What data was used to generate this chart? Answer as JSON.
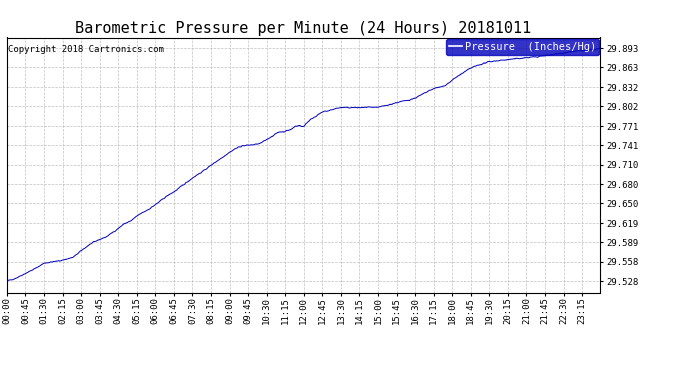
{
  "title": "Barometric Pressure per Minute (24 Hours) 20181011",
  "copyright": "Copyright 2018 Cartronics.com",
  "legend_label": "Pressure  (Inches/Hg)",
  "line_color": "#0000bb",
  "background_color": "#ffffff",
  "plot_bg_color": "#ffffff",
  "grid_color": "#c0c0c0",
  "yticks": [
    29.528,
    29.558,
    29.589,
    29.619,
    29.65,
    29.68,
    29.71,
    29.741,
    29.771,
    29.802,
    29.832,
    29.863,
    29.893
  ],
  "ylim": [
    29.51,
    29.91
  ],
  "xtick_labels": [
    "00:00",
    "00:45",
    "01:30",
    "02:15",
    "03:00",
    "03:45",
    "04:30",
    "05:15",
    "06:00",
    "06:45",
    "07:30",
    "08:15",
    "09:00",
    "09:45",
    "10:30",
    "11:15",
    "12:00",
    "12:45",
    "13:30",
    "14:15",
    "15:00",
    "15:45",
    "16:30",
    "17:15",
    "18:00",
    "18:45",
    "19:30",
    "20:15",
    "21:00",
    "21:45",
    "22:30",
    "23:15"
  ],
  "title_fontsize": 11,
  "copyright_fontsize": 6.5,
  "tick_fontsize": 6.5,
  "legend_fontsize": 7.5,
  "keypoints": [
    [
      0,
      29.528
    ],
    [
      20,
      29.532
    ],
    [
      45,
      29.54
    ],
    [
      70,
      29.548
    ],
    [
      90,
      29.556
    ],
    [
      110,
      29.558
    ],
    [
      130,
      29.56
    ],
    [
      160,
      29.565
    ],
    [
      185,
      29.578
    ],
    [
      200,
      29.585
    ],
    [
      220,
      29.592
    ],
    [
      240,
      29.597
    ],
    [
      265,
      29.608
    ],
    [
      285,
      29.618
    ],
    [
      300,
      29.622
    ],
    [
      320,
      29.632
    ],
    [
      345,
      29.641
    ],
    [
      365,
      29.65
    ],
    [
      385,
      29.66
    ],
    [
      410,
      29.67
    ],
    [
      430,
      29.68
    ],
    [
      455,
      29.692
    ],
    [
      475,
      29.7
    ],
    [
      500,
      29.712
    ],
    [
      520,
      29.721
    ],
    [
      540,
      29.73
    ],
    [
      555,
      29.736
    ],
    [
      570,
      29.74
    ],
    [
      585,
      29.741
    ],
    [
      600,
      29.742
    ],
    [
      615,
      29.744
    ],
    [
      625,
      29.748
    ],
    [
      635,
      29.752
    ],
    [
      650,
      29.758
    ],
    [
      660,
      29.762
    ],
    [
      670,
      29.762
    ],
    [
      680,
      29.764
    ],
    [
      690,
      29.766
    ],
    [
      700,
      29.771
    ],
    [
      710,
      29.772
    ],
    [
      715,
      29.77
    ],
    [
      720,
      29.771
    ],
    [
      730,
      29.778
    ],
    [
      740,
      29.783
    ],
    [
      750,
      29.787
    ],
    [
      760,
      29.791
    ],
    [
      770,
      29.794
    ],
    [
      780,
      29.795
    ],
    [
      790,
      29.797
    ],
    [
      800,
      29.799
    ],
    [
      810,
      29.8
    ],
    [
      820,
      29.8
    ],
    [
      835,
      29.8
    ],
    [
      850,
      29.8
    ],
    [
      865,
      29.8
    ],
    [
      875,
      29.801
    ],
    [
      885,
      29.8
    ],
    [
      895,
      29.8
    ],
    [
      910,
      29.802
    ],
    [
      925,
      29.804
    ],
    [
      940,
      29.807
    ],
    [
      960,
      29.81
    ],
    [
      975,
      29.812
    ],
    [
      990,
      29.815
    ],
    [
      1005,
      29.82
    ],
    [
      1020,
      29.825
    ],
    [
      1035,
      29.83
    ],
    [
      1050,
      29.832
    ],
    [
      1060,
      29.834
    ],
    [
      1070,
      29.838
    ],
    [
      1080,
      29.843
    ],
    [
      1095,
      29.85
    ],
    [
      1110,
      29.856
    ],
    [
      1125,
      29.862
    ],
    [
      1140,
      29.866
    ],
    [
      1155,
      29.869
    ],
    [
      1165,
      29.871
    ],
    [
      1170,
      29.872
    ],
    [
      1180,
      29.873
    ],
    [
      1195,
      29.874
    ],
    [
      1210,
      29.875
    ],
    [
      1225,
      29.876
    ],
    [
      1240,
      29.877
    ],
    [
      1255,
      29.878
    ],
    [
      1270,
      29.879
    ],
    [
      1290,
      29.88
    ],
    [
      1310,
      29.882
    ],
    [
      1330,
      29.884
    ],
    [
      1350,
      29.886
    ],
    [
      1370,
      29.888
    ],
    [
      1390,
      29.889
    ],
    [
      1410,
      29.89
    ],
    [
      1425,
      29.891
    ],
    [
      1439,
      29.893
    ]
  ]
}
